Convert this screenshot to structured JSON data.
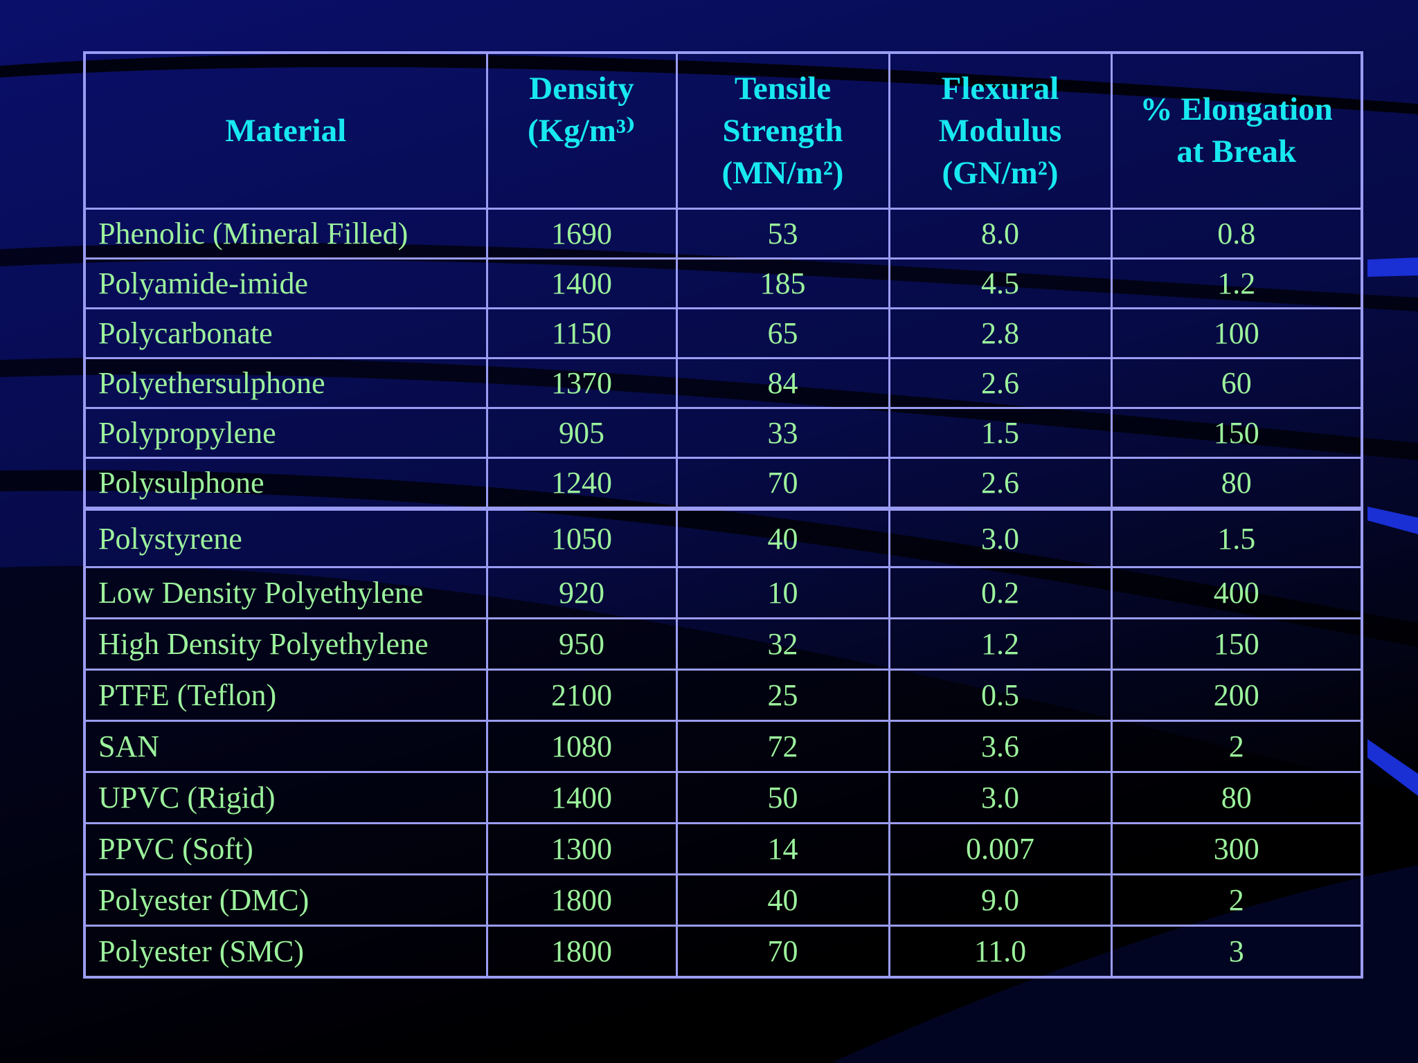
{
  "colors": {
    "border": "#9a9cf2",
    "header_text": "#18e8f0",
    "cell_text": "#9cf29c",
    "background": "#000000",
    "accent": "#1a2fd4"
  },
  "table": {
    "headers": [
      [
        "Material"
      ],
      [
        "Density",
        "(Kg/m³⁾"
      ],
      [
        "Tensile",
        "Strength",
        "(MN/m²)"
      ],
      [
        "Flexural",
        "Modulus",
        "(GN/m²)"
      ],
      [
        "% Elongation",
        "at Break"
      ]
    ],
    "rows_top": [
      [
        "Phenolic (Mineral Filled)",
        "1690",
        "53",
        "8.0",
        "0.8"
      ],
      [
        "Polyamide-imide",
        "1400",
        "185",
        "4.5",
        "1.2"
      ],
      [
        "Polycarbonate",
        "1150",
        "65",
        "2.8",
        "100"
      ],
      [
        "Polyethersulphone",
        "1370",
        "84",
        "2.6",
        "60"
      ],
      [
        "Polypropylene",
        "905",
        "33",
        "1.5",
        "150"
      ],
      [
        "Polysulphone",
        "1240",
        "70",
        "2.6",
        "80"
      ]
    ],
    "rows_bottom": [
      [
        "Polystyrene",
        "1050",
        "40",
        "3.0",
        "1.5"
      ],
      [
        "Low Density Polyethylene",
        "920",
        "10",
        "0.2",
        "400"
      ],
      [
        "High Density Polyethylene",
        "950",
        "32",
        "1.2",
        "150"
      ],
      [
        "PTFE (Teflon)",
        "2100",
        "25",
        "0.5",
        "200"
      ],
      [
        "SAN",
        "1080",
        "72",
        "3.6",
        "2"
      ],
      [
        "UPVC (Rigid)",
        "1400",
        "50",
        "3.0",
        "80"
      ],
      [
        "PPVC (Soft)",
        "1300",
        "14",
        "0.007",
        "300"
      ],
      [
        "Polyester (DMC)",
        "1800",
        "40",
        "9.0",
        "2"
      ],
      [
        "Polyester (SMC)",
        "1800",
        "70",
        "11.0",
        "3"
      ]
    ]
  }
}
